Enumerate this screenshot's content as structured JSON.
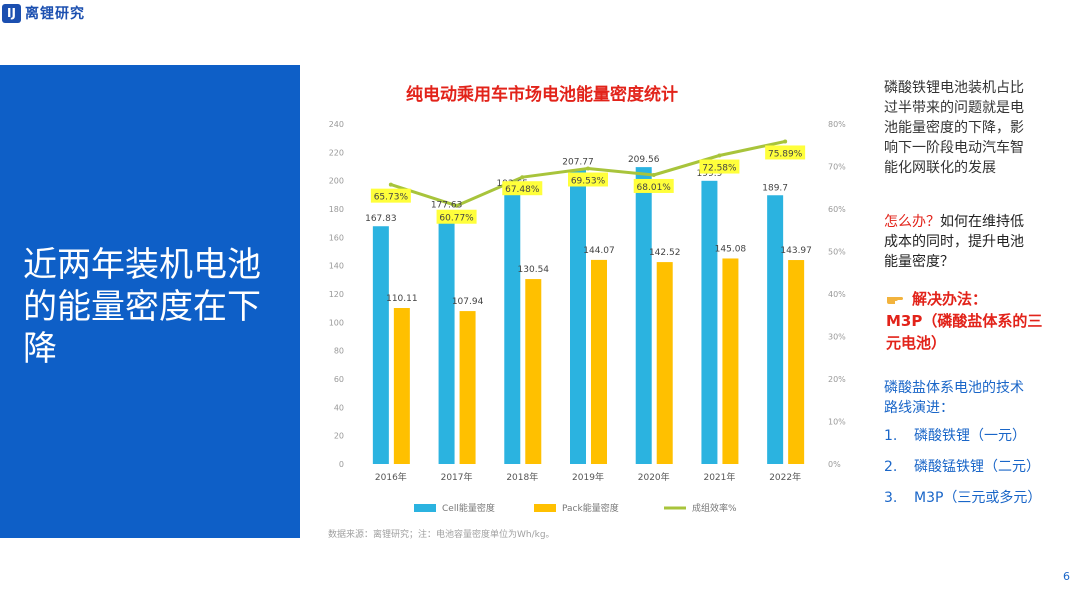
{
  "logo": {
    "mark": "IJ",
    "name": "离锂研究"
  },
  "slide": {
    "title": "近两年装机电池的能量密度在下降",
    "page_number": "6"
  },
  "side": {
    "problem": "磷酸铁锂电池装机占比过半带来的问题就是电池能量密度的下降，影响下一阶段电动汽车智能化网联化的发展",
    "question_red": "怎么办？",
    "question_rest": "如何在维持低成本的同时，提升电池能量密度？",
    "solution_label": "解决办法：",
    "solution_text": "M3P（磷酸盐体系的三元电池）",
    "route_title": "磷酸盐体系电池的技术路线演进：",
    "route_items": [
      {
        "num": "1.",
        "text": "磷酸铁锂（一元）"
      },
      {
        "num": "2.",
        "text": "磷酸锰铁锂（二元）"
      },
      {
        "num": "3.",
        "text": "M3P（三元或多元）"
      }
    ]
  },
  "colors": {
    "panel_blue": "#0e5fc7",
    "cell_bar": "#2bb3e0",
    "pack_bar": "#ffc000",
    "line": "#a8c43b",
    "title_red": "#e2231a",
    "highlight": "#ffff3b"
  },
  "chart_data": {
    "type": "bar",
    "title": "纯电动乘用车市场电池能量密度统计",
    "categories": [
      "2016年",
      "2017年",
      "2018年",
      "2019年",
      "2020年",
      "2021年",
      "2022年"
    ],
    "series": [
      {
        "name": "Cell能量密度",
        "type": "bar",
        "axis": "left",
        "values": [
          167.83,
          177.63,
          192.65,
          207.77,
          209.56,
          199.9,
          189.7
        ],
        "labels": [
          "167.83",
          "177.63",
          "192.65",
          "207.77",
          "209.56",
          "199.9",
          "189.7"
        ]
      },
      {
        "name": "Pack能量密度",
        "type": "bar",
        "axis": "left",
        "values": [
          110.11,
          107.94,
          130.54,
          144.07,
          142.52,
          145.08,
          143.97
        ],
        "labels": [
          "110.11",
          "107.94",
          "130.54",
          "144.07",
          "142.52",
          "145.08",
          "143.97"
        ]
      },
      {
        "name": "成组效率%",
        "type": "line",
        "axis": "right",
        "values": [
          65.73,
          60.77,
          67.48,
          69.53,
          68.01,
          72.58,
          75.89
        ],
        "labels": [
          "65.73%",
          "60.77%",
          "67.48%",
          "69.53%",
          "68.01%",
          "72.58%",
          "75.89%"
        ]
      }
    ],
    "y_left": {
      "min": 0,
      "max": 240,
      "step": 20,
      "ticks": [
        "0",
        "20",
        "40",
        "60",
        "80",
        "100",
        "120",
        "140",
        "160",
        "180",
        "200",
        "220",
        "240"
      ]
    },
    "y_right": {
      "min": 0,
      "max": 80,
      "step": 10,
      "ticks": [
        "0%",
        "10%",
        "20%",
        "30%",
        "40%",
        "50%",
        "60%",
        "70%",
        "80%"
      ]
    },
    "footnote": "数据来源：离锂研究；注：电池容量密度单位为Wh/kg。",
    "grid": false,
    "legend_position": "bottom"
  }
}
